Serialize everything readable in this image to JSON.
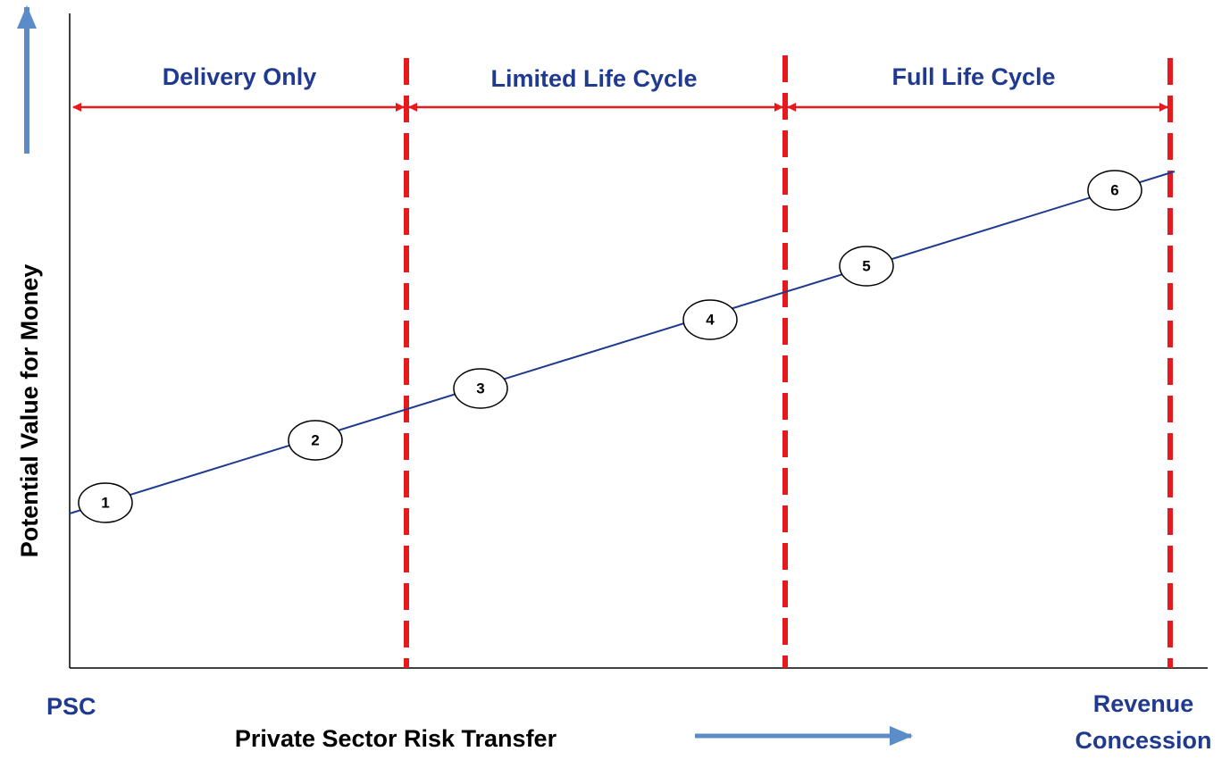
{
  "axes": {
    "y_label": "Potential Value for Money",
    "x_label": "Private Sector Risk Transfer",
    "x_start": "PSC",
    "x_end": [
      "Revenue",
      "Concession"
    ]
  },
  "zones": [
    {
      "label": "Delivery Only"
    },
    {
      "label": "Limited Life Cycle"
    },
    {
      "label": "Full Life Cycle"
    }
  ],
  "nodes": [
    {
      "label": "1"
    },
    {
      "label": "2"
    },
    {
      "label": "3"
    },
    {
      "label": "4"
    },
    {
      "label": "5"
    },
    {
      "label": "6"
    }
  ]
}
